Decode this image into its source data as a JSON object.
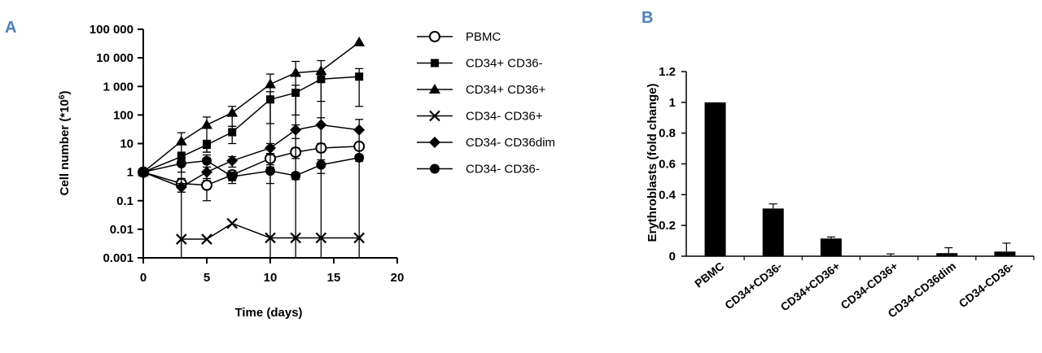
{
  "chart_data": [
    {
      "panel": "A",
      "type": "line",
      "xlabel": "Time (days)",
      "ylabel": "Cell number (*10",
      "ylabel_sup": "6",
      "ylabel_close": ")",
      "xlim": [
        0,
        20
      ],
      "ylim": [
        0.001,
        100000
      ],
      "yscale": "log",
      "xticks": [
        "0",
        "5",
        "10",
        "15",
        "20"
      ],
      "yticks": [
        "0.001",
        "0.01",
        "0.1",
        "1",
        "10",
        "100",
        "1 000",
        "10 000",
        "100 000"
      ],
      "legend_position": "right",
      "series": [
        {
          "name": "PBMC",
          "marker": "circle-open",
          "x": [
            0,
            3,
            5,
            7,
            10,
            12,
            14,
            17
          ],
          "y": [
            1,
            0.4,
            0.35,
            0.8,
            3,
            5,
            7,
            8
          ],
          "err": [
            0,
            0.2,
            0.25,
            0.3,
            1.5,
            2,
            2,
            1
          ]
        },
        {
          "name": "CD34+ CD36-",
          "marker": "square",
          "x": [
            0,
            3,
            5,
            7,
            10,
            12,
            14,
            17
          ],
          "y": [
            1,
            3.5,
            9,
            25,
            350,
            600,
            1800,
            2200
          ],
          "err": [
            0,
            1.5,
            4,
            15,
            300,
            500,
            1500,
            2000
          ]
        },
        {
          "name": "CD34+ CD36+",
          "marker": "triangle",
          "x": [
            0,
            3,
            5,
            7,
            10,
            12,
            14,
            17
          ],
          "y": [
            1,
            12,
            45,
            120,
            1200,
            3000,
            3500,
            35000
          ],
          "err": [
            0,
            12,
            40,
            80,
            1500,
            4500,
            4500,
            0
          ]
        },
        {
          "name": "CD34- CD36+",
          "marker": "cross",
          "x": [
            3,
            5,
            7,
            10,
            12,
            14,
            17
          ],
          "y": [
            0.0045,
            0.0045,
            0.016,
            0.005,
            0.005,
            0.005,
            0.005
          ],
          "err": [
            0,
            0,
            0,
            0,
            0,
            0,
            0
          ]
        },
        {
          "name": "CD34- CD36dim",
          "marker": "diamond",
          "x": [
            0,
            3,
            5,
            7,
            10,
            12,
            14,
            17
          ],
          "y": [
            1,
            0.3,
            1,
            2.5,
            7,
            30,
            45,
            30
          ],
          "err": [
            0,
            0.1,
            0.5,
            1,
            3,
            15,
            35,
            40
          ]
        },
        {
          "name": "CD34- CD36-",
          "marker": "circle-filled",
          "x": [
            0,
            3,
            5,
            7,
            10,
            12,
            14,
            17
          ],
          "y": [
            1,
            2,
            2.5,
            0.7,
            1.1,
            0.75,
            1.8,
            3.2
          ],
          "err": [
            0,
            1,
            1.5,
            0.3,
            0.7,
            0.2,
            0.9,
            0.8
          ]
        }
      ]
    },
    {
      "panel": "B",
      "type": "bar",
      "ylabel": "Erythroblasts  (fold change)",
      "ylim": [
        0,
        1.2
      ],
      "yticks": [
        "0",
        "0.2",
        "0.4",
        "0.6",
        "0.8",
        "1",
        "1.2"
      ],
      "categories": [
        "PBMC",
        "CD34+CD36-",
        "CD34+CD36+",
        "CD34-CD36+",
        "CD34-CD36dim",
        "CD34-CD36-"
      ],
      "values": [
        1.0,
        0.31,
        0.115,
        0.0,
        0.02,
        0.03
      ],
      "errors": [
        0.0,
        0.03,
        0.01,
        0.015,
        0.035,
        0.055
      ],
      "bar_color": "#000000"
    }
  ]
}
